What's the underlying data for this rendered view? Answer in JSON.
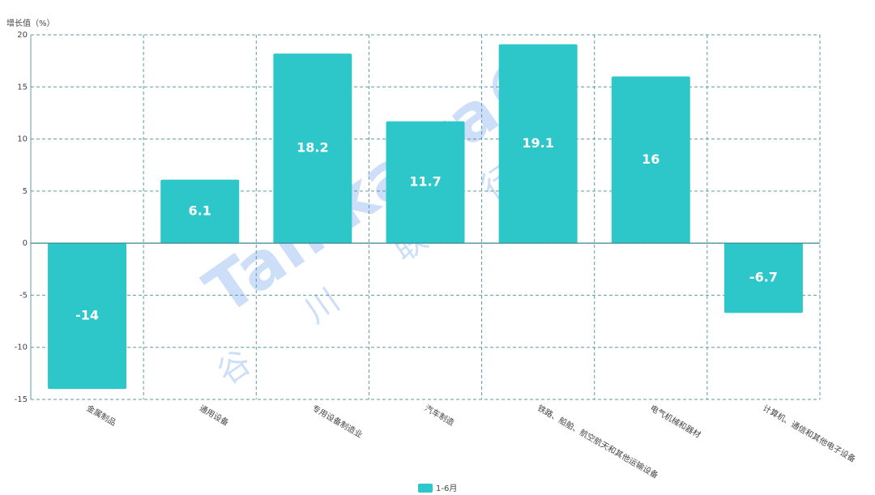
{
  "chart_data": {
    "type": "bar",
    "y_axis_label": "增长值（%）",
    "categories": [
      "金属制品",
      "通用设备",
      "专用设备制造业",
      "汽车制造",
      "铁路、船舶、航空航天和其他运输设备",
      "电气机械和器材",
      "计算机、通信和其他电子设备"
    ],
    "series": [
      {
        "name": "1-6月",
        "color": "#2ec7c9",
        "values": [
          -14,
          6.1,
          18.2,
          11.7,
          19.1,
          16,
          -6.7
        ]
      }
    ],
    "ylim": [
      -15,
      20
    ],
    "yticks": [
      -15,
      -10,
      -5,
      0,
      5,
      10,
      15,
      20
    ],
    "grid": true,
    "legend": "bottom",
    "watermark": "Tanikawa®",
    "watermark_cn": "谷 川 联 行"
  }
}
